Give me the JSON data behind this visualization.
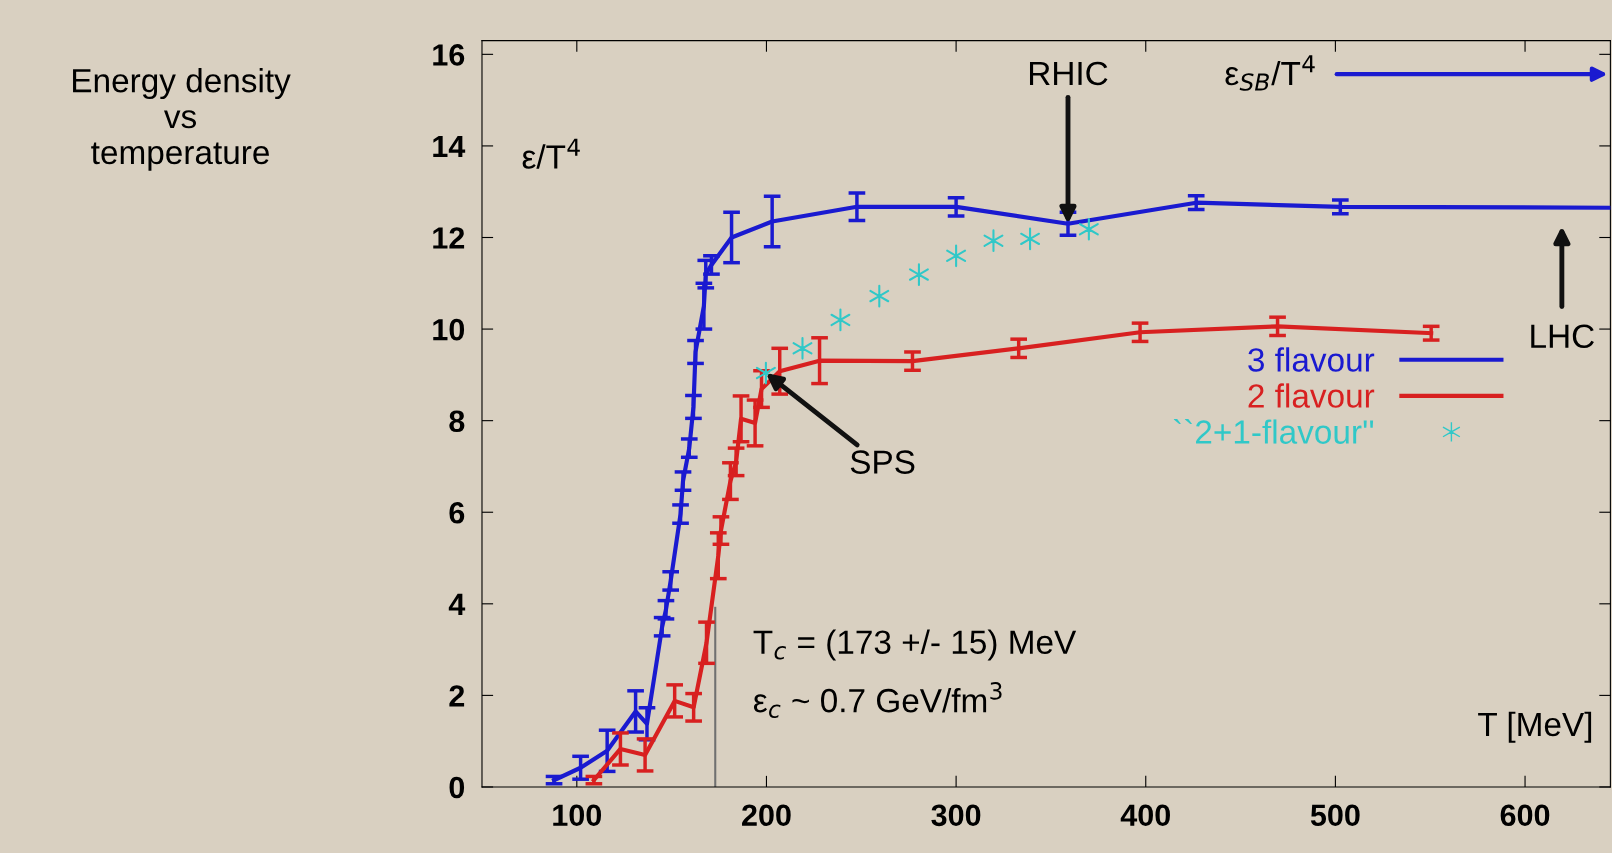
{
  "chart_data": {
    "type": "line",
    "title": "Energy density\nvs\ntemperature",
    "xlabel": "T [MeV]",
    "ylabel": "ε/T$^{4}$",
    "xlim": [
      50,
      645
    ],
    "ylim": [
      0,
      16.3
    ],
    "xticks": [
      100,
      200,
      300,
      400,
      500,
      600
    ],
    "yticks": [
      0,
      2,
      4,
      6,
      8,
      10,
      12,
      14,
      16
    ],
    "grid": false,
    "legend": "right",
    "series": [
      {
        "name": "3 flavour",
        "color": "#1a1ad0",
        "x": [
          88,
          102,
          116,
          131,
          137,
          145,
          147,
          149.5,
          154.7,
          156,
          159.3,
          161.5,
          162.6,
          167,
          168,
          171,
          181.6,
          203,
          247.7,
          300,
          359,
          426.6,
          502.6,
          645
        ],
        "values": [
          0.15,
          0.42,
          0.79,
          1.65,
          1.38,
          3.5,
          3.87,
          4.5,
          5.96,
          6.68,
          7.4,
          8.3,
          9.5,
          10.5,
          11.2,
          11.4,
          12.0,
          12.35,
          12.67,
          12.67,
          12.3,
          12.76,
          12.67,
          12.65
        ],
        "errors": [
          0.08,
          0.25,
          0.45,
          0.45,
          0.35,
          0.2,
          0.2,
          0.2,
          0.2,
          0.2,
          0.2,
          0.25,
          0.25,
          0.5,
          0.3,
          0.2,
          0.55,
          0.55,
          0.3,
          0.2,
          0.25,
          0.15,
          0.15,
          null
        ]
      },
      {
        "name": "2 flavour",
        "color": "#d82020",
        "x": [
          109,
          123,
          136,
          151.6,
          161.6,
          168.4,
          174.6,
          176,
          181,
          184,
          186.6,
          194,
          197.4,
          207,
          228,
          277,
          333,
          397,
          469.5,
          550.5
        ],
        "values": [
          0.15,
          0.83,
          0.7,
          1.88,
          1.74,
          3.15,
          5.05,
          5.6,
          6.68,
          7.1,
          8.04,
          7.95,
          8.69,
          9.08,
          9.31,
          9.3,
          9.58,
          9.93,
          10.06,
          9.91
        ],
        "errors": [
          0.08,
          0.35,
          0.35,
          0.35,
          0.3,
          0.45,
          0.5,
          0.3,
          0.4,
          0.3,
          0.5,
          0.5,
          0.4,
          0.5,
          0.5,
          0.2,
          0.2,
          0.2,
          0.2,
          0.15
        ]
      },
      {
        "name": "``2+1-flavour''",
        "type": "scatter",
        "marker": "cross",
        "color": "#30c8c8",
        "x": [
          199.7,
          219,
          239,
          259.5,
          280.4,
          300,
          319.7,
          339,
          370
        ],
        "values": [
          9.04,
          9.58,
          10.2,
          10.72,
          11.19,
          11.6,
          11.93,
          11.97,
          12.18
        ]
      }
    ],
    "ref_lines": [
      {
        "axis": "x",
        "value": 173,
        "color": "#707070"
      }
    ],
    "annotations": [
      {
        "text": "RHIC",
        "x": 359,
        "y": 12.3
      },
      "LHC",
      {
        "text": "SPS",
        "x": 199.7,
        "y": 9.04
      },
      "ε$_{SB}$/T$^{4}$",
      "T$_{c}$ = (173 +/- 15) MeV",
      "ε$_{c}$ ~ 0.7 GeV/fm$^{3}$"
    ]
  }
}
